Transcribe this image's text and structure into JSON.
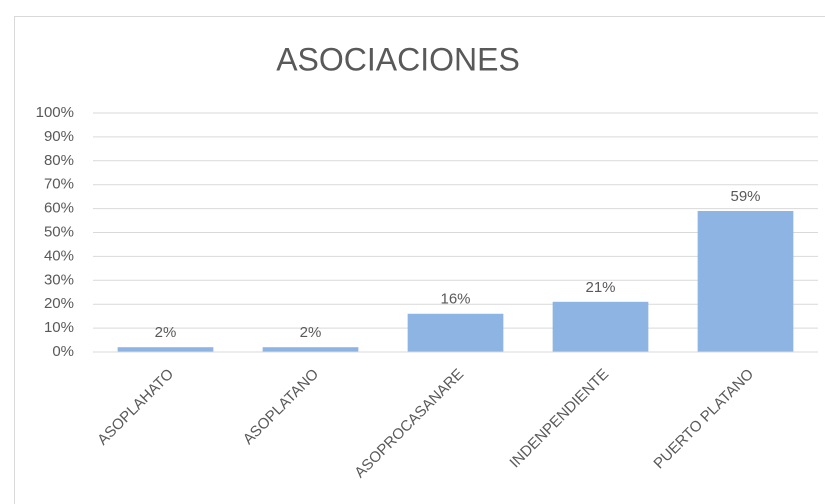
{
  "chart_data": {
    "type": "bar",
    "title": "ASOCIACIONES",
    "categories": [
      "ASOPLAHATO",
      "ASOPLATANO",
      "ASOPROCASANARE",
      "INDENPENDIENTE",
      "PUERTO PLATANO"
    ],
    "values": [
      2,
      2,
      16,
      21,
      59
    ],
    "value_labels": [
      "2%",
      "2%",
      "16%",
      "21%",
      "59%"
    ],
    "color": "#8db4e2",
    "ylim": [
      0,
      100
    ],
    "yticks": [
      {
        "value": 0,
        "label": "0%"
      },
      {
        "value": 10,
        "label": "10%"
      },
      {
        "value": 20,
        "label": "20%"
      },
      {
        "value": 30,
        "label": "30%"
      },
      {
        "value": 40,
        "label": "40%"
      },
      {
        "value": 50,
        "label": "50%"
      },
      {
        "value": 60,
        "label": "60%"
      },
      {
        "value": 70,
        "label": "70%"
      },
      {
        "value": 80,
        "label": "80%"
      },
      {
        "value": 90,
        "label": "90%"
      },
      {
        "value": 100,
        "label": "100%"
      }
    ],
    "grid": true
  }
}
